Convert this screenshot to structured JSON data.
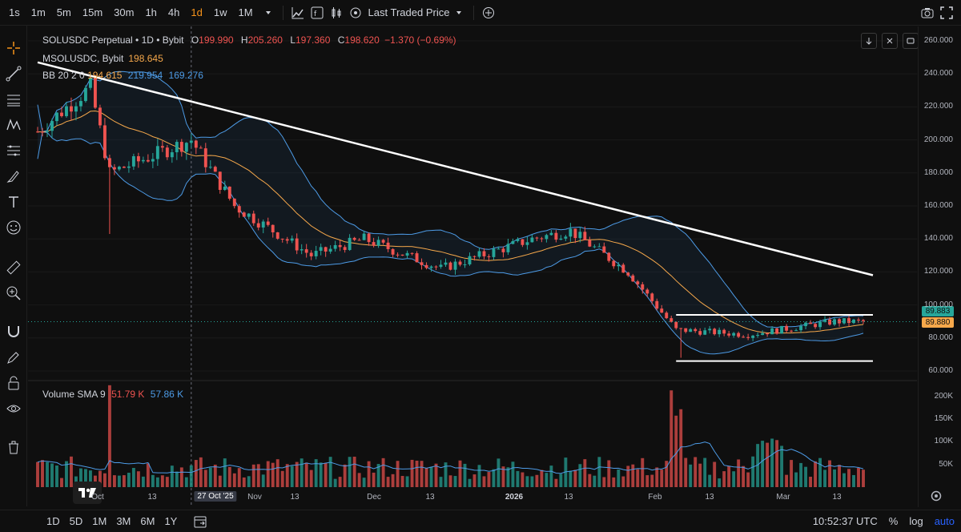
{
  "toolbar": {
    "timeframes": [
      "1s",
      "1m",
      "5m",
      "15m",
      "30m",
      "1h",
      "4h",
      "1d",
      "1w",
      "1M"
    ],
    "active_timeframe": "1d",
    "price_source": "Last Traded Price"
  },
  "legend": {
    "symbol": "SOLUSDC Perpetual • 1D • Bybit",
    "open_label": "O",
    "open": "199.990",
    "high_label": "H",
    "high": "205.260",
    "low_label": "L",
    "low": "197.360",
    "close_label": "C",
    "close": "198.620",
    "change": "−1.370 (−0.69%)",
    "mark_name": "MSOLUSDC, Bybit",
    "mark_value": "198.645",
    "bb_name": "BB 20 2 0",
    "bb_basis": "194.615",
    "bb_upper": "219.954",
    "bb_lower": "169.276",
    "vol_name": "Volume SMA 9",
    "vol_value": "51.79 K",
    "vol_sma": "57.86 K"
  },
  "price_axis": {
    "ticks": [
      "260.000",
      "240.000",
      "220.000",
      "200.000",
      "180.000",
      "160.000",
      "140.000",
      "120.000",
      "100.000",
      "80.000",
      "60.000"
    ],
    "last_price_label": "89.880",
    "mark_price_label": "89.883",
    "volume_ticks": [
      "200K",
      "150K",
      "100K",
      "50K"
    ]
  },
  "time_axis": {
    "labels": [
      "Oct",
      "13",
      "Nov",
      "13",
      "Dec",
      "13",
      "2026",
      "13",
      "Feb",
      "13",
      "Mar",
      "13"
    ],
    "crosshair_label": "27 Oct '25"
  },
  "bottom": {
    "ranges": [
      "1D",
      "5D",
      "1M",
      "3M",
      "6M",
      "1Y"
    ],
    "clock": "10:52:37 UTC",
    "percent": "%",
    "log": "log",
    "auto": "auto"
  },
  "colors": {
    "up": "#26a69a",
    "down": "#ef5350",
    "bb_band": "#4d9be6",
    "bb_basis": "#f6a84b",
    "accent": "#f7931a"
  },
  "chart_data": {
    "type": "candlestick",
    "symbol": "SOLUSDC Perpetual",
    "interval": "1D",
    "price_range": [
      55,
      265
    ],
    "approx_closes": [
      {
        "date": "2025-09-25",
        "close": 205
      },
      {
        "date": "2025-10-06",
        "close": 232
      },
      {
        "date": "2025-10-10",
        "close": 180
      },
      {
        "date": "2025-10-27",
        "close": 200
      },
      {
        "date": "2025-11-05",
        "close": 160
      },
      {
        "date": "2025-11-21",
        "close": 130
      },
      {
        "date": "2025-12-02",
        "close": 140
      },
      {
        "date": "2025-12-18",
        "close": 122
      },
      {
        "date": "2026-01-06",
        "close": 140
      },
      {
        "date": "2026-01-14",
        "close": 145
      },
      {
        "date": "2026-01-26",
        "close": 120
      },
      {
        "date": "2026-02-05",
        "close": 85
      },
      {
        "date": "2026-02-20",
        "close": 82
      },
      {
        "date": "2026-03-10",
        "close": 90
      },
      {
        "date": "2026-03-16",
        "close": 89.88
      }
    ],
    "trendline": {
      "from": {
        "date": "2025-09-25",
        "price": 247
      },
      "to": {
        "date": "2026-03-18",
        "price": 118
      }
    },
    "range_box": {
      "top": 94,
      "bottom": 66
    },
    "volume_max": "230K"
  }
}
